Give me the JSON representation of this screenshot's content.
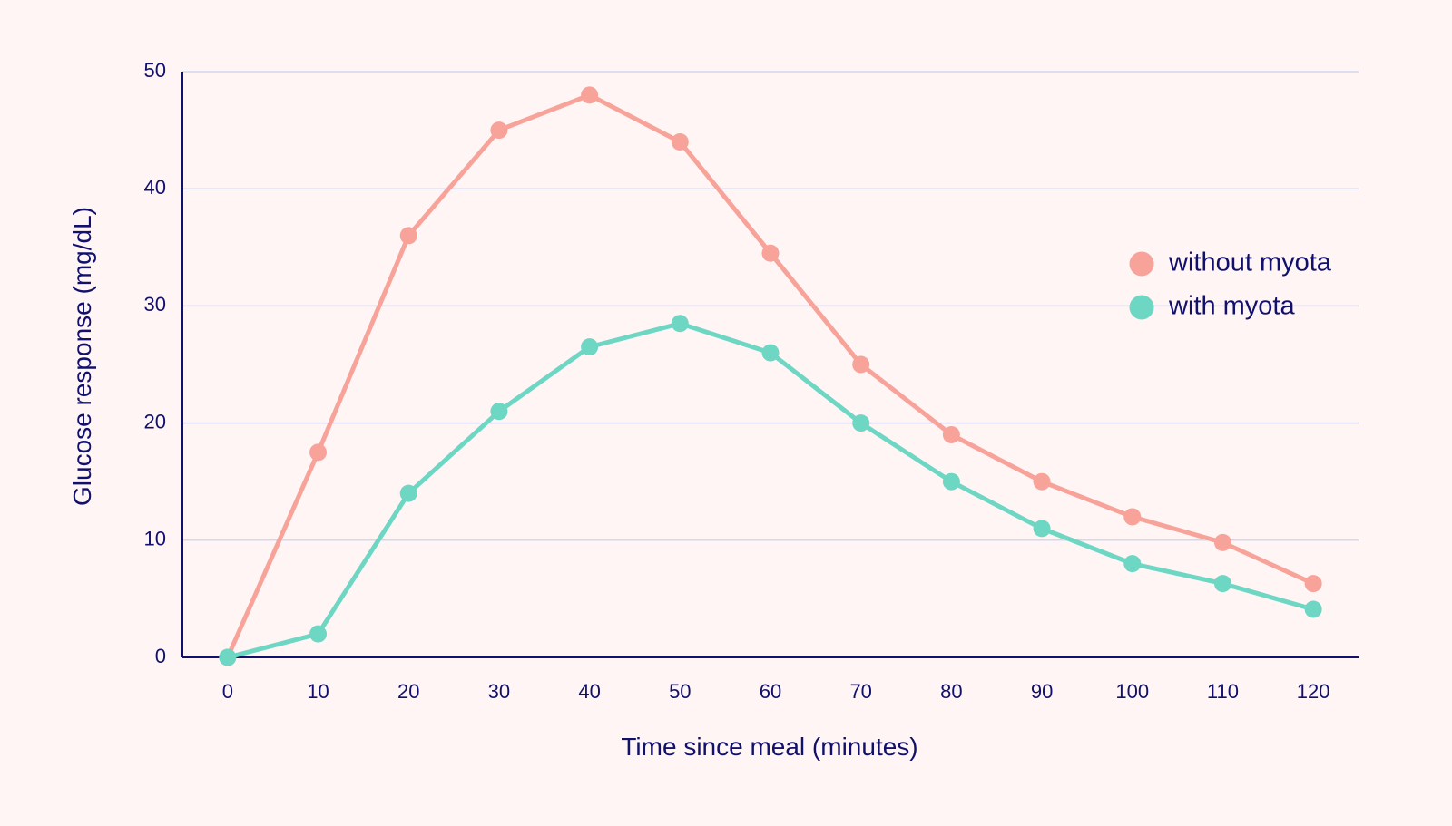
{
  "chart_data": {
    "type": "line",
    "xlabel": "Time since meal (minutes)",
    "ylabel": "Glucose response (mg/dL)",
    "x": [
      0,
      10,
      20,
      30,
      40,
      50,
      60,
      70,
      80,
      90,
      100,
      110,
      120
    ],
    "x_tick_labels": [
      "0",
      "10",
      "20",
      "30",
      "40",
      "50",
      "60",
      "70",
      "80",
      "90",
      "100",
      "110",
      "120"
    ],
    "xlim": [
      -5,
      125
    ],
    "ylim": [
      0,
      50
    ],
    "y_ticks": [
      0,
      10,
      20,
      30,
      40,
      50
    ],
    "y_tick_labels": [
      "0",
      "10",
      "20",
      "30",
      "40",
      "50"
    ],
    "grid": "horizontal",
    "legend_position": "right",
    "series": [
      {
        "name": "without myota",
        "color": "#f8a39a",
        "values": [
          0,
          17.5,
          36,
          45,
          48,
          44,
          34.5,
          25,
          19,
          15,
          12,
          9.8,
          6.3
        ]
      },
      {
        "name": "with myota",
        "color": "#6ed7c4",
        "values": [
          0,
          2,
          14,
          21,
          26.5,
          28.5,
          26,
          20,
          15,
          11,
          8,
          6.3,
          4.1
        ]
      }
    ],
    "colors": {
      "axis": "#11116b",
      "grid": "#d4d6ee",
      "text": "#11116b",
      "background": "#fff5f5"
    }
  }
}
